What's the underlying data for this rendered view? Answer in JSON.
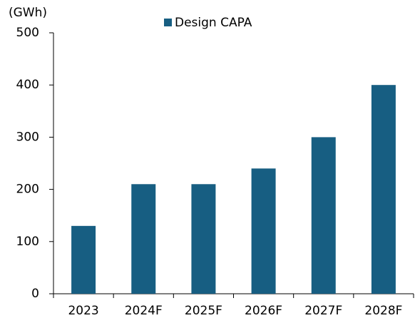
{
  "chart_data": {
    "type": "bar",
    "y_label": "(GWh)",
    "categories": [
      "2023",
      "2024F",
      "2025F",
      "2026F",
      "2027F",
      "2028F"
    ],
    "series": [
      {
        "name": "Design CAPA",
        "color": "#175e82",
        "values": [
          130,
          210,
          210,
          240,
          300,
          400
        ]
      }
    ],
    "ylim": [
      0,
      500
    ],
    "yticks": [
      0,
      100,
      200,
      300,
      400,
      500
    ],
    "grid": false,
    "legend": "top"
  }
}
